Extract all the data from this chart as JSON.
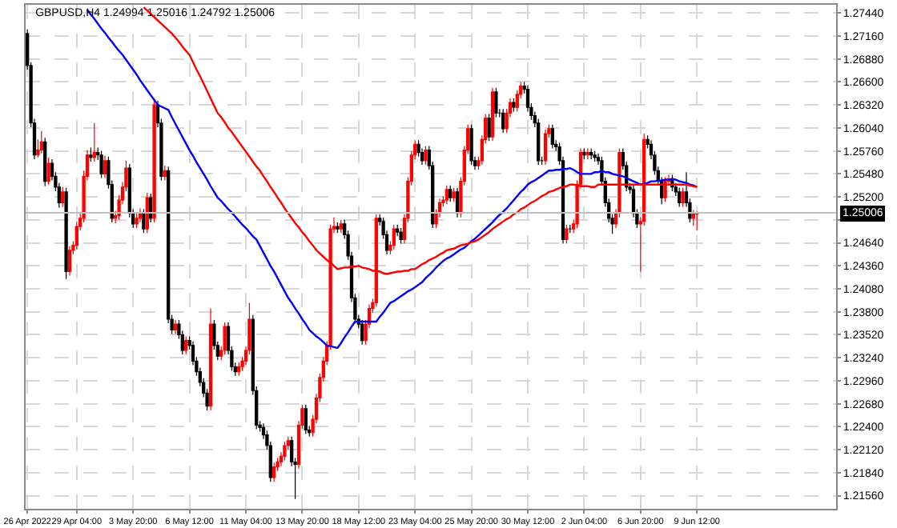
{
  "chart_data": {
    "type": "candlestick",
    "title": "GBPUSD,H4 1.24994 1.25016 1.24792 1.25006",
    "categories": [
      "26 Apr 2022",
      null,
      null,
      null,
      null,
      null,
      null,
      null,
      null,
      null,
      null,
      null,
      null,
      null,
      "29 Apr 04:00",
      null,
      null,
      null,
      null,
      null,
      null,
      null,
      null,
      null,
      null,
      null,
      null,
      null,
      null,
      null,
      "3 May 20:00",
      null,
      null,
      null,
      null,
      null,
      null,
      null,
      null,
      null,
      null,
      null,
      null,
      null,
      null,
      null,
      "6 May 12:00",
      null,
      null,
      null,
      null,
      null,
      null,
      null,
      null,
      null,
      null,
      null,
      null,
      null,
      null,
      null,
      "11 May 04:00",
      null,
      null,
      null,
      null,
      null,
      null,
      null,
      null,
      null,
      null,
      null,
      null,
      null,
      null,
      null,
      "13 May 20:00",
      null,
      null,
      null,
      null,
      null,
      null,
      null,
      null,
      null,
      null,
      null,
      null,
      null,
      null,
      null,
      "18 May 12:00",
      null,
      null,
      null,
      null,
      null,
      null,
      null,
      null,
      null,
      null,
      null,
      null,
      null,
      null,
      null,
      "23 May 04:00",
      null,
      null,
      null,
      null,
      null,
      null,
      null,
      null,
      null,
      null,
      null,
      null,
      null,
      null,
      null,
      "25 May 20:00",
      null,
      null,
      null,
      null,
      null,
      null,
      null,
      null,
      null,
      null,
      null,
      null,
      null,
      null,
      null,
      "30 May 12:00",
      null,
      null,
      null,
      null,
      null,
      null,
      null,
      null,
      null,
      null,
      null,
      null,
      null,
      null,
      null,
      "2 Jun 04:00",
      null,
      null,
      null,
      null,
      null,
      null,
      null,
      null,
      null,
      null,
      null,
      null,
      null,
      null,
      null,
      "6 Jun 20:00",
      null,
      null,
      null,
      null,
      null,
      null,
      null,
      null,
      null,
      null,
      null,
      null,
      null,
      null,
      null,
      "9 Jun 12:00",
      null,
      null,
      null,
      null,
      null,
      null,
      null,
      null,
      null,
      null,
      null,
      null,
      null,
      null,
      null,
      null,
      null,
      null,
      null,
      null,
      null,
      null,
      null,
      null,
      null,
      null,
      null,
      null,
      null,
      null,
      null,
      null,
      null,
      null,
      null,
      null,
      null,
      null,
      null
    ],
    "colors": [
      "#000000",
      "#000000",
      "#000000",
      "#ff0000",
      "#ff0000",
      "#000000",
      "#ff0000",
      "#000000",
      "#000000",
      "#000000",
      "#ff0000",
      "#000000",
      "#ff0000",
      "#ff0000",
      "#ff0000",
      "#ff0000",
      "#ff0000",
      "#ff0000",
      "#000000",
      "#ff0000",
      "#000000",
      "#000000",
      "#ff0000",
      "#000000",
      "#000000",
      "#ff0000",
      "#ff0000",
      "#ff0000",
      "#ff0000",
      "#000000",
      "#000000",
      "#ff0000",
      "#ff0000",
      "#000000",
      "#ff0000",
      "#000000",
      "#ff0000",
      "#000000",
      "#000000",
      "#ff0000",
      "#000000",
      "#000000",
      "#ff0000",
      "#000000",
      "#000000",
      "#ff0000",
      "#000000",
      "#000000",
      "#000000",
      "#000000",
      "#000000",
      "#000000",
      "#ff0000",
      "#000000",
      "#000000",
      "#ff0000",
      "#ff0000",
      "#000000",
      "#000000",
      "#000000",
      "#ff0000",
      "#ff0000",
      "#ff0000",
      "#ff0000",
      "#000000",
      "#000000",
      "#000000",
      "#000000",
      "#000000",
      "#000000",
      "#ff0000",
      "#ff0000",
      "#ff0000",
      "#ff0000",
      "#ff0000",
      "#000000",
      "#000000",
      "#ff0000",
      "#ff0000",
      "#000000",
      "#000000",
      "#ff0000",
      "#ff0000",
      "#ff0000",
      "#ff0000",
      "#ff0000",
      "#ff0000",
      "#ff0000",
      "#000000",
      "#ff0000",
      "#000000",
      "#000000",
      "#000000",
      "#000000",
      "#000000",
      "#000000",
      "#ff0000",
      "#ff0000",
      "#ff0000",
      "#ff0000",
      "#000000",
      "#000000",
      "#000000",
      "#ff0000",
      "#ff0000",
      "#000000",
      "#000000",
      "#ff0000",
      "#ff0000",
      "#ff0000",
      "#ff0000",
      "#000000",
      "#000000",
      "#ff0000",
      "#000000",
      "#000000",
      "#ff0000",
      "#ff0000",
      "#ff0000",
      "#ff0000",
      "#000000",
      "#ff0000",
      "#000000",
      "#ff0000",
      "#ff0000",
      "#ff0000",
      "#000000",
      "#000000",
      "#ff0000",
      "#ff0000",
      "#ff0000",
      "#000000",
      "#ff0000",
      "#000000",
      "#000000",
      "#000000",
      "#ff0000",
      "#ff0000",
      "#000000",
      "#ff0000",
      "#ff0000",
      "#000000",
      "#000000",
      "#000000",
      "#000000",
      "#000000",
      "#000000",
      "#ff0000",
      "#ff0000",
      "#000000",
      "#000000",
      "#000000",
      "#000000",
      "#ff0000",
      "#000000",
      "#ff0000",
      "#ff0000",
      "#ff0000",
      "#000000",
      "#ff0000",
      "#000000",
      "#000000",
      "#000000",
      "#000000",
      "#000000",
      "#000000",
      "#000000",
      "#ff0000",
      "#ff0000",
      "#000000",
      "#000000",
      "#000000",
      "#000000",
      "#000000",
      "#ff0000",
      "#ff0000",
      "#000000",
      "#000000",
      "#000000",
      "#000000",
      "#000000",
      "#ff0000",
      "#ff0000",
      "#000000",
      "#000000",
      "#000000",
      "#ff0000",
      "#000000",
      "#000000",
      "#ff0000",
      "#ff0000",
      null,
      null,
      null,
      null,
      null,
      null,
      null,
      null,
      null,
      null,
      null,
      null,
      null,
      null,
      null,
      null,
      null,
      null,
      null,
      null,
      null,
      null,
      null,
      null,
      null,
      null,
      null,
      null,
      null,
      null,
      null,
      null,
      null,
      null,
      null,
      null,
      null,
      null,
      null
    ],
    "ohlc": [
      [
        1.2719,
        1.2724,
        1.2675,
        1.268
      ],
      [
        1.268,
        1.2684,
        1.2605,
        1.261
      ],
      [
        1.261,
        1.2615,
        1.2566,
        1.2571
      ],
      [
        1.2571,
        1.259,
        1.2568,
        1.2577
      ],
      [
        1.2577,
        1.26,
        1.2573,
        1.2587
      ],
      [
        1.2587,
        1.2592,
        1.2533,
        1.2539
      ],
      [
        1.2539,
        1.2568,
        1.2535,
        1.2561
      ],
      [
        1.2561,
        1.2566,
        1.254,
        1.2545
      ],
      [
        1.2545,
        1.255,
        1.2527,
        1.2532
      ],
      [
        1.2532,
        1.2537,
        1.2507,
        1.2513
      ],
      [
        1.2513,
        1.2532,
        1.2508,
        1.2526
      ],
      [
        1.2526,
        1.2531,
        1.242,
        1.2429
      ],
      [
        1.2429,
        1.246,
        1.2424,
        1.2455
      ],
      [
        1.2455,
        1.2466,
        1.245,
        1.2461
      ],
      [
        1.2461,
        1.249,
        1.2456,
        1.2484
      ],
      [
        1.2484,
        1.25,
        1.2479,
        1.2494
      ],
      [
        1.2494,
        1.2552,
        1.2489,
        1.2545
      ],
      [
        1.2545,
        1.2577,
        1.254,
        1.2571
      ],
      [
        1.2571,
        1.258,
        1.2563,
        1.2568
      ],
      [
        1.2568,
        1.261,
        1.2563,
        1.2574
      ],
      [
        1.2574,
        1.258,
        1.2565,
        1.2571
      ],
      [
        1.2571,
        1.2576,
        1.2543,
        1.2548
      ],
      [
        1.2548,
        1.257,
        1.2543,
        1.2564
      ],
      [
        1.2564,
        1.2569,
        1.253,
        1.2535
      ],
      [
        1.2535,
        1.254,
        1.2489,
        1.2494
      ],
      [
        1.2494,
        1.2503,
        1.2488,
        1.2497
      ],
      [
        1.2497,
        1.2522,
        1.2492,
        1.2516
      ],
      [
        1.2516,
        1.2538,
        1.2511,
        1.2532
      ],
      [
        1.2532,
        1.2564,
        1.2527,
        1.2555
      ],
      [
        1.2555,
        1.256,
        1.2495,
        1.25
      ],
      [
        1.25,
        1.2505,
        1.2482,
        1.2487
      ],
      [
        1.2487,
        1.25,
        1.2482,
        1.2494
      ],
      [
        1.2494,
        1.2506,
        1.2489,
        1.25
      ],
      [
        1.25,
        1.2505,
        1.2476,
        1.2481
      ],
      [
        1.2481,
        1.2525,
        1.2476,
        1.2519
      ],
      [
        1.2519,
        1.2524,
        1.2489,
        1.2494
      ],
      [
        1.2494,
        1.2638,
        1.2489,
        1.2632
      ],
      [
        1.2632,
        1.2637,
        1.2605,
        1.261
      ],
      [
        1.261,
        1.2615,
        1.254,
        1.2545
      ],
      [
        1.2545,
        1.2558,
        1.254,
        1.2552
      ],
      [
        1.2552,
        1.2557,
        1.2366,
        1.2371
      ],
      [
        1.2371,
        1.2376,
        1.2353,
        1.2358
      ],
      [
        1.2358,
        1.237,
        1.2353,
        1.2365
      ],
      [
        1.2365,
        1.237,
        1.2347,
        1.2352
      ],
      [
        1.2352,
        1.2357,
        1.2328,
        1.2333
      ],
      [
        1.2333,
        1.235,
        1.2328,
        1.2345
      ],
      [
        1.2345,
        1.235,
        1.2334,
        1.2339
      ],
      [
        1.2339,
        1.2344,
        1.2315,
        1.232
      ],
      [
        1.232,
        1.2325,
        1.2302,
        1.2307
      ],
      [
        1.2307,
        1.2312,
        1.2289,
        1.2294
      ],
      [
        1.2294,
        1.2299,
        1.2276,
        1.2281
      ],
      [
        1.2281,
        1.2286,
        1.226,
        1.2265
      ],
      [
        1.2265,
        1.2384,
        1.226,
        1.2365
      ],
      [
        1.2365,
        1.237,
        1.2334,
        1.2339
      ],
      [
        1.2339,
        1.2344,
        1.2321,
        1.2326
      ],
      [
        1.2326,
        1.2338,
        1.2321,
        1.2333
      ],
      [
        1.2333,
        1.2367,
        1.2328,
        1.2362
      ],
      [
        1.2362,
        1.2367,
        1.2328,
        1.2333
      ],
      [
        1.2333,
        1.2338,
        1.2308,
        1.2313
      ],
      [
        1.2313,
        1.2318,
        1.2302,
        1.2307
      ],
      [
        1.2307,
        1.2318,
        1.2302,
        1.2313
      ],
      [
        1.2313,
        1.2325,
        1.2308,
        1.232
      ],
      [
        1.232,
        1.2338,
        1.2315,
        1.2333
      ],
      [
        1.2333,
        1.2391,
        1.2328,
        1.2371
      ],
      [
        1.2371,
        1.2376,
        1.2279,
        1.2284
      ],
      [
        1.2284,
        1.2289,
        1.2237,
        1.2242
      ],
      [
        1.2242,
        1.2247,
        1.2234,
        1.2239
      ],
      [
        1.2239,
        1.2244,
        1.2225,
        1.223
      ],
      [
        1.223,
        1.2235,
        1.2212,
        1.2217
      ],
      [
        1.2217,
        1.2222,
        1.2173,
        1.2178
      ],
      [
        1.2178,
        1.2196,
        1.2173,
        1.2191
      ],
      [
        1.2191,
        1.2202,
        1.2186,
        1.2197
      ],
      [
        1.2197,
        1.2209,
        1.2192,
        1.2204
      ],
      [
        1.2204,
        1.2222,
        1.2199,
        1.2217
      ],
      [
        1.2217,
        1.2228,
        1.2212,
        1.2223
      ],
      [
        1.2223,
        1.2228,
        1.2192,
        1.2197
      ],
      [
        1.2197,
        1.2202,
        1.2152,
        1.2194
      ],
      [
        1.2194,
        1.2247,
        1.2189,
        1.2242
      ],
      [
        1.2242,
        1.2267,
        1.2237,
        1.2262
      ],
      [
        1.2262,
        1.2267,
        1.2231,
        1.2236
      ],
      [
        1.2236,
        1.2241,
        1.2228,
        1.2233
      ],
      [
        1.2233,
        1.2254,
        1.2228,
        1.2249
      ],
      [
        1.2249,
        1.228,
        1.2244,
        1.2275
      ],
      [
        1.2275,
        1.2305,
        1.227,
        1.23
      ],
      [
        1.23,
        1.2325,
        1.2295,
        1.232
      ],
      [
        1.232,
        1.2344,
        1.2315,
        1.2339
      ],
      [
        1.2339,
        1.2486,
        1.2334,
        1.2481
      ],
      [
        1.2481,
        1.2495,
        1.2476,
        1.2484
      ],
      [
        1.2484,
        1.2489,
        1.2476,
        1.2481
      ],
      [
        1.2481,
        1.2492,
        1.2476,
        1.2487
      ],
      [
        1.2487,
        1.2492,
        1.2469,
        1.2474
      ],
      [
        1.2474,
        1.2479,
        1.2443,
        1.2448
      ],
      [
        1.2448,
        1.2453,
        1.2392,
        1.2397
      ],
      [
        1.2397,
        1.2402,
        1.2366,
        1.2371
      ],
      [
        1.2371,
        1.2376,
        1.236,
        1.2365
      ],
      [
        1.2365,
        1.237,
        1.234,
        1.2345
      ],
      [
        1.2345,
        1.237,
        1.234,
        1.2365
      ],
      [
        1.2365,
        1.2389,
        1.236,
        1.2384
      ],
      [
        1.2384,
        1.2396,
        1.2379,
        1.2391
      ],
      [
        1.2391,
        1.2499,
        1.2386,
        1.2494
      ],
      [
        1.2494,
        1.2499,
        1.2485,
        1.249
      ],
      [
        1.249,
        1.2495,
        1.2469,
        1.2474
      ],
      [
        1.2474,
        1.2479,
        1.245,
        1.2455
      ],
      [
        1.2455,
        1.2466,
        1.245,
        1.2461
      ],
      [
        1.2461,
        1.2486,
        1.2456,
        1.2481
      ],
      [
        1.2481,
        1.2486,
        1.2472,
        1.2477
      ],
      [
        1.2477,
        1.2482,
        1.2463,
        1.2468
      ],
      [
        1.2468,
        1.2499,
        1.2463,
        1.2494
      ],
      [
        1.2494,
        1.2544,
        1.2489,
        1.2539
      ],
      [
        1.2539,
        1.2576,
        1.2534,
        1.2571
      ],
      [
        1.2571,
        1.2589,
        1.2566,
        1.2584
      ],
      [
        1.2584,
        1.2589,
        1.2569,
        1.2574
      ],
      [
        1.2574,
        1.2579,
        1.2559,
        1.2564
      ],
      [
        1.2564,
        1.2582,
        1.2559,
        1.2577
      ],
      [
        1.2577,
        1.2582,
        1.2553,
        1.2558
      ],
      [
        1.2558,
        1.2563,
        1.2482,
        1.2487
      ],
      [
        1.2487,
        1.2505,
        1.2482,
        1.25
      ],
      [
        1.25,
        1.2518,
        1.2495,
        1.2513
      ],
      [
        1.2513,
        1.2521,
        1.2508,
        1.2516
      ],
      [
        1.2516,
        1.2534,
        1.2511,
        1.2529
      ],
      [
        1.2529,
        1.2534,
        1.2514,
        1.2519
      ],
      [
        1.2519,
        1.2531,
        1.2514,
        1.2526
      ],
      [
        1.2526,
        1.2531,
        1.2495,
        1.25
      ],
      [
        1.25,
        1.2544,
        1.2495,
        1.2539
      ],
      [
        1.2539,
        1.2582,
        1.2534,
        1.2577
      ],
      [
        1.2577,
        1.2608,
        1.2572,
        1.2603
      ],
      [
        1.2603,
        1.2608,
        1.2559,
        1.2564
      ],
      [
        1.2564,
        1.2569,
        1.2553,
        1.2558
      ],
      [
        1.2558,
        1.2569,
        1.2553,
        1.2564
      ],
      [
        1.2564,
        1.2595,
        1.2559,
        1.259
      ],
      [
        1.259,
        1.2621,
        1.2585,
        1.2616
      ],
      [
        1.2616,
        1.2621,
        1.2588,
        1.2593
      ],
      [
        1.2593,
        1.2653,
        1.2588,
        1.2648
      ],
      [
        1.2648,
        1.2653,
        1.2617,
        1.2622
      ],
      [
        1.2622,
        1.2627,
        1.2617,
        1.2622
      ],
      [
        1.2622,
        1.2627,
        1.2598,
        1.2603
      ],
      [
        1.2603,
        1.2627,
        1.2598,
        1.2622
      ],
      [
        1.2622,
        1.264,
        1.2617,
        1.2635
      ],
      [
        1.2635,
        1.264,
        1.2624,
        1.2629
      ],
      [
        1.2629,
        1.265,
        1.2624,
        1.2645
      ],
      [
        1.2645,
        1.266,
        1.264,
        1.2655
      ],
      [
        1.2655,
        1.266,
        1.2646,
        1.2651
      ],
      [
        1.2651,
        1.2656,
        1.2624,
        1.2629
      ],
      [
        1.2629,
        1.2634,
        1.2614,
        1.2619
      ],
      [
        1.2619,
        1.2624,
        1.2605,
        1.261
      ],
      [
        1.261,
        1.2615,
        1.2559,
        1.2564
      ],
      [
        1.2564,
        1.2569,
        1.2559,
        1.2564
      ],
      [
        1.2564,
        1.2602,
        1.2559,
        1.2597
      ],
      [
        1.2597,
        1.2608,
        1.2592,
        1.2603
      ],
      [
        1.2603,
        1.2608,
        1.2579,
        1.2584
      ],
      [
        1.2584,
        1.2589,
        1.2576,
        1.2581
      ],
      [
        1.2581,
        1.2586,
        1.2559,
        1.2564
      ],
      [
        1.2564,
        1.2569,
        1.2463,
        1.2468
      ],
      [
        1.2468,
        1.2486,
        1.2463,
        1.2481
      ],
      [
        1.2481,
        1.2486,
        1.2476,
        1.2481
      ],
      [
        1.2481,
        1.2492,
        1.2476,
        1.2487
      ],
      [
        1.2487,
        1.254,
        1.2482,
        1.2535
      ],
      [
        1.2535,
        1.2579,
        1.253,
        1.2574
      ],
      [
        1.2574,
        1.2579,
        1.2566,
        1.2571
      ],
      [
        1.2571,
        1.2579,
        1.2566,
        1.2574
      ],
      [
        1.2574,
        1.2579,
        1.2566,
        1.2571
      ],
      [
        1.2571,
        1.2576,
        1.2563,
        1.2568
      ],
      [
        1.2568,
        1.2573,
        1.2559,
        1.2564
      ],
      [
        1.2564,
        1.2569,
        1.2534,
        1.2539
      ],
      [
        1.2539,
        1.2544,
        1.2508,
        1.2513
      ],
      [
        1.2513,
        1.2518,
        1.2489,
        1.2494
      ],
      [
        1.2494,
        1.2499,
        1.2475,
        1.2487
      ],
      [
        1.2487,
        1.2505,
        1.2482,
        1.25
      ],
      [
        1.25,
        1.2579,
        1.2495,
        1.2574
      ],
      [
        1.2574,
        1.2579,
        1.2553,
        1.2558
      ],
      [
        1.2558,
        1.2563,
        1.2527,
        1.2532
      ],
      [
        1.2532,
        1.2537,
        1.2524,
        1.2529
      ],
      [
        1.2529,
        1.2534,
        1.2495,
        1.25
      ],
      [
        1.25,
        1.2505,
        1.2482,
        1.2487
      ],
      [
        1.2487,
        1.2495,
        1.2429,
        1.249
      ],
      [
        1.249,
        1.2597,
        1.2485,
        1.259
      ],
      [
        1.259,
        1.2595,
        1.2579,
        1.2584
      ],
      [
        1.2584,
        1.2589,
        1.2566,
        1.2571
      ],
      [
        1.2571,
        1.2576,
        1.2547,
        1.2552
      ],
      [
        1.2552,
        1.2557,
        1.2534,
        1.2539
      ],
      [
        1.2539,
        1.2544,
        1.2511,
        1.2519
      ],
      [
        1.2519,
        1.2544,
        1.2514,
        1.2539
      ],
      [
        1.2539,
        1.2547,
        1.2534,
        1.2542
      ],
      [
        1.2542,
        1.2547,
        1.2527,
        1.2532
      ],
      [
        1.2532,
        1.2537,
        1.2521,
        1.2526
      ],
      [
        1.2526,
        1.2531,
        1.2508,
        1.2513
      ],
      [
        1.2513,
        1.2531,
        1.2508,
        1.2526
      ],
      [
        1.2526,
        1.255,
        1.2508,
        1.2513
      ],
      [
        1.2513,
        1.2518,
        1.2489,
        1.2494
      ],
      [
        1.2494,
        1.2504,
        1.2485,
        1.2499
      ],
      [
        1.2499,
        1.2502,
        1.2479,
        1.2501
      ],
      null,
      null,
      null,
      null,
      null,
      null,
      null,
      null,
      null,
      null,
      null,
      null,
      null,
      null,
      null,
      null,
      null,
      null,
      null,
      null,
      null,
      null,
      null,
      null,
      null,
      null,
      null,
      null,
      null,
      null,
      null,
      null,
      null,
      null,
      null,
      null,
      null,
      null,
      null
    ],
    "series": [
      {
        "type": "line",
        "color": "#0000ff",
        "values": [
          null,
          null,
          null,
          null,
          null,
          null,
          null,
          null,
          null,
          null,
          null,
          null,
          null,
          null,
          null,
          null,
          null,
          1.2748,
          1.2742,
          1.2737,
          1.2731,
          1.2725,
          1.272,
          1.2714,
          1.2709,
          1.2703,
          1.2698,
          1.2693,
          1.2687,
          1.2681,
          1.2675,
          1.2669,
          1.2662,
          1.2656,
          1.265,
          1.2644,
          1.2638,
          1.2632,
          1.263,
          1.2628,
          1.2626,
          1.2617,
          1.2609,
          1.2601,
          1.2593,
          1.2585,
          1.2577,
          1.257,
          1.2562,
          1.2555,
          1.2548,
          1.2541,
          1.2533,
          1.2526,
          1.2519,
          1.2515,
          1.251,
          1.2505,
          1.2501,
          1.2496,
          1.2491,
          1.2486,
          1.2482,
          1.2477,
          1.2472,
          1.2468,
          1.246,
          1.2452,
          1.2444,
          1.2436,
          1.2429,
          1.2421,
          1.2413,
          1.2405,
          1.2397,
          1.2391,
          1.2384,
          1.2378,
          1.2371,
          1.2365,
          1.2358,
          1.2354,
          1.235,
          1.2347,
          1.2343,
          1.2339,
          1.2338,
          1.2337,
          1.2336,
          1.2342,
          1.2349,
          1.2355,
          1.2362,
          1.2368,
          1.2368,
          1.2368,
          1.2368,
          1.2368,
          1.2368,
          1.2368,
          1.2374,
          1.2379,
          1.2385,
          1.2391,
          1.2393,
          1.2396,
          1.2399,
          1.2402,
          1.2405,
          1.2407,
          1.241,
          1.2413,
          1.2416,
          1.2421,
          1.2425,
          1.2429,
          1.2434,
          1.2438,
          1.2442,
          1.2445,
          1.2447,
          1.245,
          1.2453,
          1.2456,
          1.2458,
          1.2462,
          1.2466,
          1.2469,
          1.2473,
          1.2477,
          1.2481,
          1.2485,
          1.2489,
          1.2494,
          1.2498,
          1.2502,
          1.2506,
          1.2511,
          1.2516,
          1.2521,
          1.2526,
          1.253,
          1.2535,
          1.2538,
          1.254,
          1.2543,
          1.2546,
          1.2549,
          1.2552,
          1.2552,
          1.2553,
          1.2553,
          1.2554,
          1.2554,
          1.2555,
          1.2553,
          1.255,
          1.2548,
          1.2548,
          1.2548,
          1.2548,
          1.255,
          1.255,
          1.2552,
          1.255,
          1.255,
          1.2548,
          1.2547,
          1.2546,
          1.2545,
          1.2543,
          1.2541,
          1.2539,
          1.2537,
          1.2535,
          1.2536,
          1.2537,
          1.2539,
          1.2539,
          1.254,
          1.254,
          1.2541,
          1.2541,
          1.2542,
          1.2541,
          1.2539,
          1.2538,
          1.2537,
          1.2535,
          1.2534,
          1.2532,
          null,
          null,
          null,
          null,
          null,
          null,
          null,
          null,
          null,
          null,
          null,
          null,
          null,
          null,
          null,
          null,
          null,
          null,
          null,
          null,
          null,
          null,
          null,
          null,
          null,
          null,
          null,
          null,
          null,
          null,
          null,
          null,
          null,
          null,
          null,
          null,
          null,
          null,
          null
        ]
      },
      {
        "type": "line",
        "color": "#ff0000",
        "values": [
          null,
          null,
          null,
          null,
          null,
          null,
          null,
          null,
          null,
          null,
          null,
          null,
          null,
          null,
          null,
          null,
          null,
          null,
          null,
          null,
          null,
          null,
          null,
          null,
          null,
          null,
          null,
          null,
          null,
          null,
          null,
          null,
          null,
          1.2751,
          1.2747,
          1.2743,
          1.2739,
          1.2735,
          1.2731,
          1.2727,
          1.2723,
          1.2719,
          1.2714,
          1.2709,
          1.2703,
          1.2698,
          1.2693,
          1.2684,
          1.2675,
          1.2667,
          1.2658,
          1.2649,
          1.264,
          1.2631,
          1.2622,
          1.2617,
          1.2611,
          1.2604,
          1.2599,
          1.2593,
          1.2587,
          1.2581,
          1.2575,
          1.2569,
          1.2563,
          1.2557,
          1.2552,
          1.2545,
          1.2539,
          1.2532,
          1.2526,
          1.2519,
          1.2513,
          1.2506,
          1.25,
          1.2494,
          1.2488,
          1.2483,
          1.2477,
          1.2472,
          1.2466,
          1.2461,
          1.2455,
          1.2451,
          1.2447,
          1.2443,
          1.244,
          1.2436,
          1.2432,
          1.2433,
          1.2434,
          1.2434,
          1.2435,
          1.2435,
          1.2436,
          1.2434,
          1.2433,
          1.2432,
          1.243,
          1.243,
          1.2429,
          1.2427,
          1.2426,
          1.2427,
          1.2428,
          1.2429,
          1.2429,
          1.243,
          1.243,
          1.2432,
          1.2432,
          1.2435,
          1.2438,
          1.244,
          1.2443,
          1.2445,
          1.2447,
          1.245,
          1.2452,
          1.2455,
          1.2456,
          1.2457,
          1.2459,
          1.2461,
          1.2462,
          1.2463,
          1.2465,
          1.2466,
          1.2468,
          1.2471,
          1.2474,
          1.2477,
          1.2481,
          1.2484,
          1.2487,
          1.249,
          1.2493,
          1.2495,
          1.2499,
          1.2501,
          1.2505,
          1.2507,
          1.251,
          1.2513,
          1.2515,
          1.2518,
          1.2521,
          1.2523,
          1.2526,
          1.2527,
          1.2529,
          1.2531,
          1.2532,
          1.2533,
          1.2535,
          1.2535,
          1.2534,
          1.2533,
          1.2533,
          1.2533,
          1.2532,
          1.2532,
          1.2535,
          1.2535,
          1.2535,
          1.2535,
          1.2535,
          1.2535,
          1.2535,
          1.2535,
          1.2535,
          1.2535,
          1.2535,
          1.2535,
          1.2535,
          1.2535,
          1.2535,
          1.2535,
          1.2535,
          1.2535,
          1.2535,
          1.2535,
          1.2535,
          1.2535,
          1.2535,
          1.2535,
          1.2535,
          1.2535,
          1.2534,
          1.2533,
          1.2532,
          null,
          null,
          null,
          null,
          null,
          null,
          null,
          null,
          null,
          null,
          null,
          null,
          null,
          null,
          null,
          null,
          null,
          null,
          null,
          null,
          null,
          null,
          null,
          null,
          null,
          null,
          null,
          null,
          null,
          null,
          null,
          null,
          null,
          null,
          null,
          null,
          null,
          null,
          null
        ]
      }
    ],
    "ylim": [
      1.214,
      1.2754
    ],
    "yticks": [
      {
        "value": 1.2744,
        "label": "1.27440"
      },
      {
        "value": 1.2716,
        "label": "1.27160"
      },
      {
        "value": 1.2688,
        "label": "1.26880"
      },
      {
        "value": 1.266,
        "label": "1.26600"
      },
      {
        "value": 1.2632,
        "label": "1.26320"
      },
      {
        "value": 1.2604,
        "label": "1.26040"
      },
      {
        "value": 1.2576,
        "label": "1.25760"
      },
      {
        "value": 1.2548,
        "label": "1.25480"
      },
      {
        "value": 1.252,
        "label": "1.25200"
      },
      {
        "value": 1.2492,
        "label": null
      },
      {
        "value": 1.2464,
        "label": "1.24640"
      },
      {
        "value": 1.2436,
        "label": "1.24360"
      },
      {
        "value": 1.2408,
        "label": "1.24080"
      },
      {
        "value": 1.238,
        "label": "1.23800"
      },
      {
        "value": 1.2352,
        "label": "1.23520"
      },
      {
        "value": 1.2324,
        "label": "1.23240"
      },
      {
        "value": 1.2296,
        "label": "1.22960"
      },
      {
        "value": 1.2268,
        "label": "1.22680"
      },
      {
        "value": 1.224,
        "label": "1.22400"
      },
      {
        "value": 1.2212,
        "label": "1.22120"
      },
      {
        "value": 1.2184,
        "label": "1.21840"
      },
      {
        "value": 1.2156,
        "label": "1.21560"
      }
    ],
    "ref_lines": [
      {
        "axis": "y",
        "value": 1.25006,
        "label": "1.25006",
        "color": "#c0c0c0"
      }
    ],
    "grid": true
  }
}
